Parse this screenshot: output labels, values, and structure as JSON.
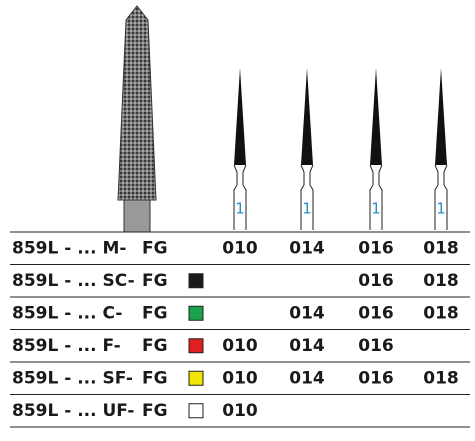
{
  "diagram": {
    "shank_labels": [
      "1",
      "1",
      "1",
      "1"
    ]
  },
  "table": {
    "rows": [
      {
        "code": "859L - ... M-",
        "suffix": "FG",
        "swatch": null,
        "sizes": [
          "010",
          "014",
          "016",
          "018"
        ]
      },
      {
        "code": "859L - ... SC-",
        "suffix": "FG",
        "swatch": "#1a1a1a",
        "sizes": [
          null,
          null,
          "016",
          "018"
        ]
      },
      {
        "code": "859L - ... C-",
        "suffix": "FG",
        "swatch": "#1aa34a",
        "sizes": [
          null,
          "014",
          "016",
          "018"
        ]
      },
      {
        "code": "859L - ... F-",
        "suffix": "FG",
        "swatch": "#e02020",
        "sizes": [
          "010",
          "014",
          "016",
          null
        ]
      },
      {
        "code": "859L - ... SF-",
        "suffix": "FG",
        "swatch": "#f2e600",
        "sizes": [
          "010",
          "014",
          "016",
          "018"
        ]
      },
      {
        "code": "859L - ... UF-",
        "suffix": "FG",
        "swatch": "#ffffff",
        "sizes": [
          "010",
          null,
          null,
          null
        ]
      }
    ]
  }
}
